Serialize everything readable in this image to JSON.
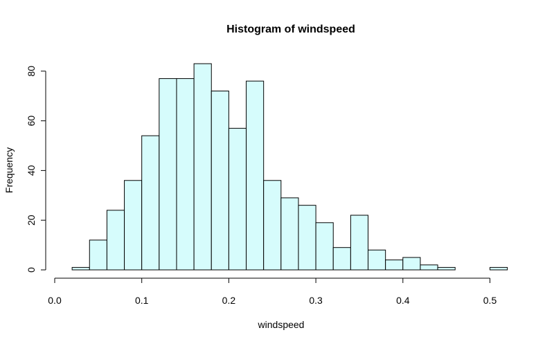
{
  "chart_data": {
    "type": "bar",
    "title": "Histogram of windspeed",
    "xlabel": "windspeed",
    "ylabel": "Frequency",
    "bin_width": 0.02,
    "bins": [
      {
        "start": 0.02,
        "end": 0.04,
        "count": 1
      },
      {
        "start": 0.04,
        "end": 0.06,
        "count": 12
      },
      {
        "start": 0.06,
        "end": 0.08,
        "count": 24
      },
      {
        "start": 0.08,
        "end": 0.1,
        "count": 36
      },
      {
        "start": 0.1,
        "end": 0.12,
        "count": 54
      },
      {
        "start": 0.12,
        "end": 0.14,
        "count": 77
      },
      {
        "start": 0.14,
        "end": 0.16,
        "count": 77
      },
      {
        "start": 0.16,
        "end": 0.18,
        "count": 83
      },
      {
        "start": 0.18,
        "end": 0.2,
        "count": 72
      },
      {
        "start": 0.2,
        "end": 0.22,
        "count": 57
      },
      {
        "start": 0.22,
        "end": 0.24,
        "count": 76
      },
      {
        "start": 0.24,
        "end": 0.26,
        "count": 36
      },
      {
        "start": 0.26,
        "end": 0.28,
        "count": 29
      },
      {
        "start": 0.28,
        "end": 0.3,
        "count": 26
      },
      {
        "start": 0.3,
        "end": 0.32,
        "count": 19
      },
      {
        "start": 0.32,
        "end": 0.34,
        "count": 9
      },
      {
        "start": 0.34,
        "end": 0.36,
        "count": 22
      },
      {
        "start": 0.36,
        "end": 0.38,
        "count": 8
      },
      {
        "start": 0.38,
        "end": 0.4,
        "count": 4
      },
      {
        "start": 0.4,
        "end": 0.42,
        "count": 5
      },
      {
        "start": 0.42,
        "end": 0.44,
        "count": 2
      },
      {
        "start": 0.44,
        "end": 0.46,
        "count": 1
      },
      {
        "start": 0.46,
        "end": 0.48,
        "count": 0
      },
      {
        "start": 0.48,
        "end": 0.5,
        "count": 0
      },
      {
        "start": 0.5,
        "end": 0.52,
        "count": 1
      }
    ],
    "xlim": [
      0.0,
      0.52
    ],
    "ylim": [
      0,
      83
    ],
    "x_ticks": [
      0.0,
      0.1,
      0.2,
      0.3,
      0.4,
      0.5
    ],
    "x_tick_labels": [
      "0.0",
      "0.1",
      "0.2",
      "0.3",
      "0.4",
      "0.5"
    ],
    "y_ticks": [
      0,
      20,
      40,
      60,
      80
    ],
    "y_tick_labels": [
      "0",
      "20",
      "40",
      "60",
      "80"
    ],
    "bar_color": "#d6fcfc",
    "edge_color": "#000000",
    "grid": false,
    "legend": "none"
  }
}
